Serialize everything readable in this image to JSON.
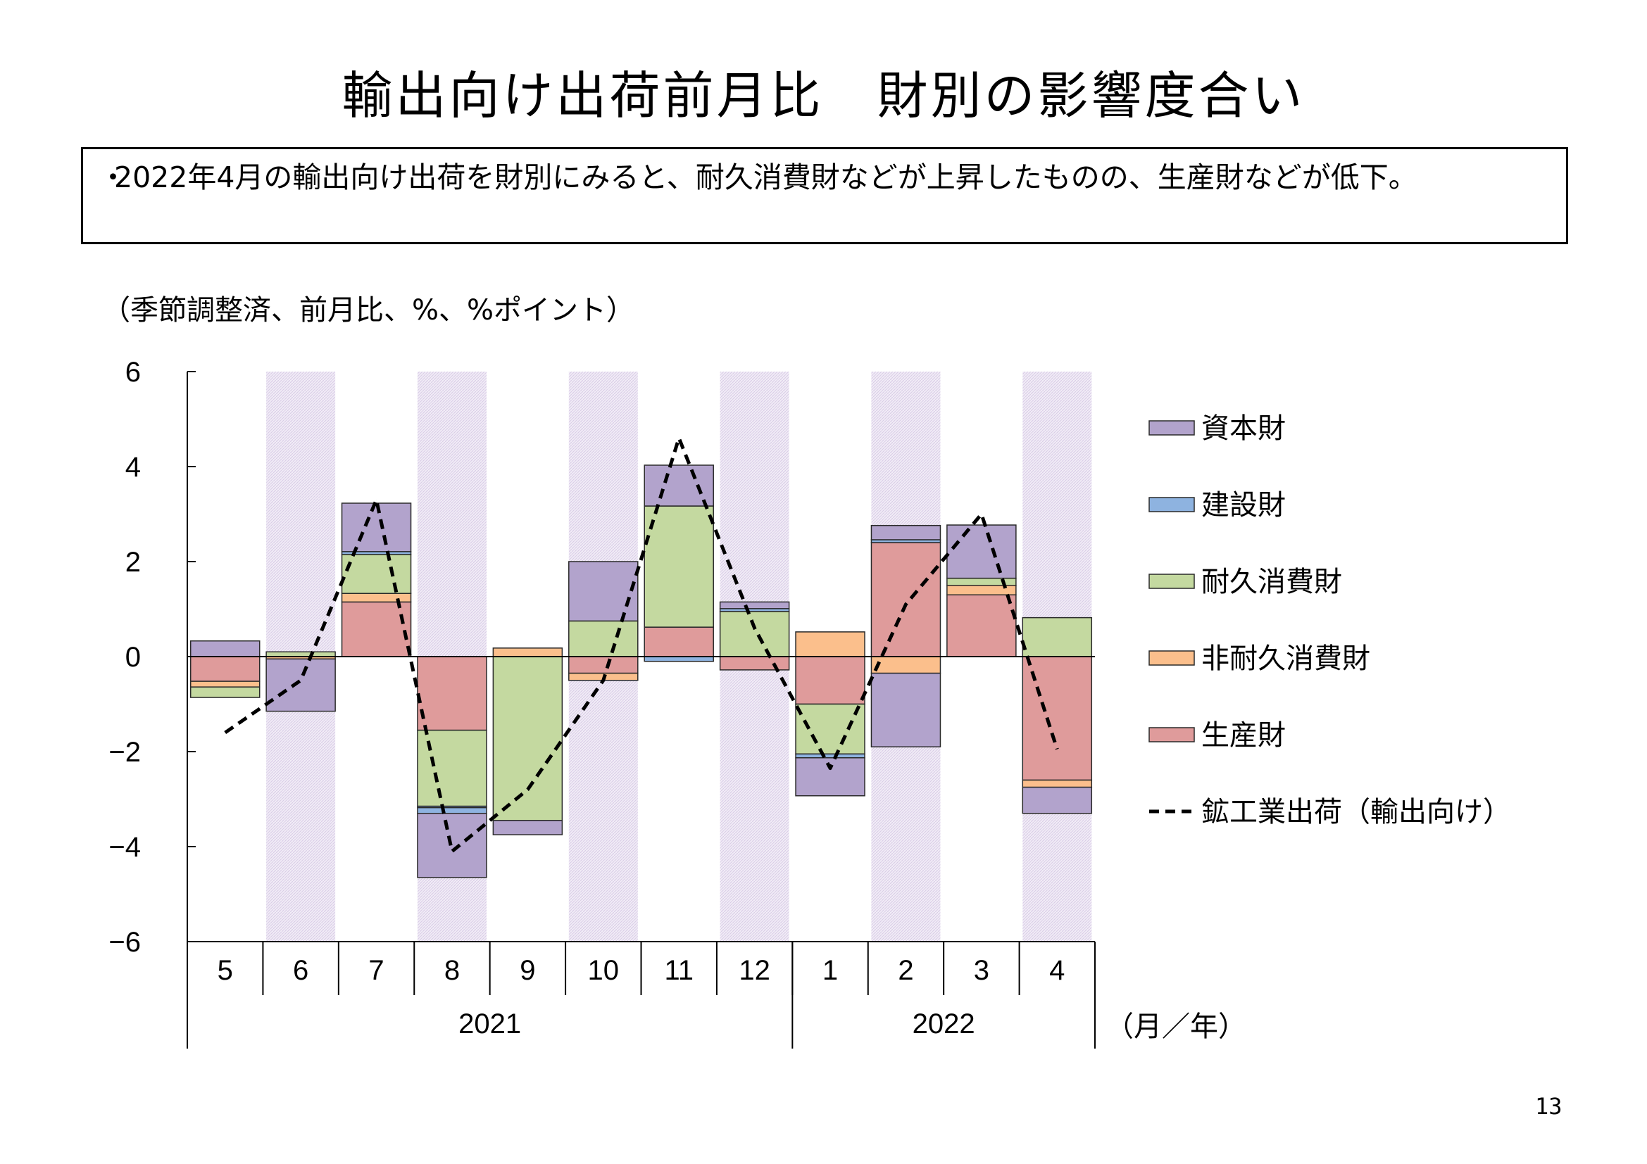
{
  "title": "輸出向け出荷前月比　財別の影響度合い",
  "summary": {
    "bullet": "・",
    "text": "2022年4月の輸出向け出荷を財別にみると、耐久消費財などが上昇したものの、生産財などが低下。"
  },
  "unit_label": "（季節調整済、前月比、%、%ポイント）",
  "page_number": "13",
  "colors": {
    "shade": "#e6def0",
    "line": "#000000"
  },
  "chart_data": {
    "type": "bar",
    "stacked": true,
    "categories": [
      "5",
      "6",
      "7",
      "8",
      "9",
      "10",
      "11",
      "12",
      "1",
      "2",
      "3",
      "4"
    ],
    "year_groups": [
      {
        "label": "2021",
        "span": 8
      },
      {
        "label": "2022",
        "span": 4
      }
    ],
    "x_unit": "（月／年）",
    "ylim": [
      -6,
      6
    ],
    "yticks": [
      6,
      4,
      2,
      0,
      -2,
      -4,
      -6
    ],
    "ytick_labels": [
      "6",
      "4",
      "2",
      "0",
      "−2",
      "−4",
      "−6"
    ],
    "grid": false,
    "legend_position": "right",
    "shaded_months": [
      "6",
      "8",
      "10",
      "12",
      "2",
      "4"
    ],
    "series": [
      {
        "name": "生産財",
        "color": "#df9b9b",
        "values": [
          -0.52,
          0.0,
          1.15,
          -1.55,
          0.0,
          -0.35,
          0.62,
          -0.28,
          -1.0,
          2.4,
          1.3,
          -2.6
        ]
      },
      {
        "name": "非耐久消費財",
        "color": "#fbbf8c",
        "values": [
          -0.12,
          -0.05,
          0.18,
          0.0,
          0.18,
          -0.15,
          0.0,
          0.0,
          0.52,
          -0.35,
          0.2,
          -0.15
        ]
      },
      {
        "name": "耐久消費財",
        "color": "#c4d9a0",
        "values": [
          -0.22,
          0.1,
          0.82,
          -1.6,
          -3.45,
          0.75,
          2.55,
          0.95,
          -1.05,
          0.0,
          0.15,
          0.82
        ]
      },
      {
        "name": "建設財",
        "color": "#8eb3e0",
        "values": [
          0.0,
          0.0,
          0.06,
          -0.03,
          0.0,
          0.0,
          -0.1,
          0.06,
          -0.08,
          0.06,
          0.0,
          0.0
        ]
      },
      {
        "name": "資本財",
        "color": "#b2a3cc",
        "values": [
          0.33,
          -1.1,
          1.02,
          -1.35,
          -0.3,
          1.25,
          0.86,
          0.14,
          -0.8,
          0.3,
          1.12,
          -0.55
        ]
      }
    ],
    "negatives_extra": {
      "建設財_neg_3": -0.12,
      "資本財_neg_9": -1.55
    },
    "line_series": {
      "name": "鉱工業出荷（輸出向け）",
      "values": [
        -1.6,
        -0.5,
        3.3,
        -4.1,
        -2.8,
        -0.5,
        4.6,
        0.6,
        -2.35,
        1.1,
        3.0,
        -1.95
      ]
    },
    "legend": [
      "資本財",
      "建設財",
      "耐久消費財",
      "非耐久消費財",
      "生産財",
      "鉱工業出荷（輸出向け）"
    ]
  }
}
